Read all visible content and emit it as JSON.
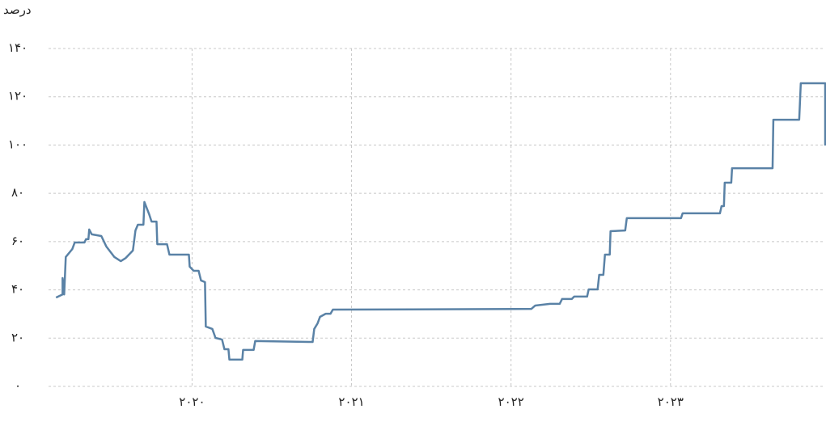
{
  "chart_data": {
    "type": "line",
    "y_label": "درصد",
    "x": [
      2019.147,
      2019.188,
      2019.188,
      2019.198,
      2019.208,
      2019.249,
      2019.264,
      2019.325,
      2019.335,
      2019.35,
      2019.355,
      2019.371,
      2019.431,
      2019.462,
      2019.513,
      2019.553,
      2019.584,
      2019.629,
      2019.645,
      2019.66,
      2019.695,
      2019.701,
      2019.731,
      2019.746,
      2019.777,
      2019.782,
      2019.843,
      2019.858,
      2019.98,
      2019.985,
      2020.01,
      2020.041,
      2020.056,
      2020.081,
      2020.086,
      2020.127,
      2020.147,
      2020.188,
      2020.203,
      2020.228,
      2020.234,
      2020.315,
      2020.32,
      2020.386,
      2020.396,
      2020.756,
      2020.766,
      2020.787,
      2020.802,
      2020.838,
      2020.868,
      2020.883,
      2022.127,
      2022.152,
      2022.244,
      2022.305,
      2022.32,
      2022.381,
      2022.396,
      2022.477,
      2022.487,
      2022.543,
      2022.553,
      2022.579,
      2022.589,
      2022.619,
      2022.624,
      2022.716,
      2022.726,
      2023.066,
      2023.076,
      2023.31,
      2023.32,
      2023.335,
      2023.34,
      2023.381,
      2023.386,
      2023.64,
      2023.645,
      2023.807,
      2023.817,
      2023.97,
      2023.97
    ],
    "series": [
      {
        "color": "#5a82a6",
        "values": [
          36.8,
          38.1,
          44.9,
          38.1,
          53.6,
          56.9,
          59.6,
          59.6,
          61,
          61,
          65,
          63,
          62.3,
          58,
          53.6,
          51.9,
          53.2,
          56.3,
          64.6,
          67,
          67,
          76.4,
          71.3,
          68.3,
          68.3,
          58.9,
          58.9,
          54.6,
          54.6,
          49.6,
          47.9,
          47.9,
          43.9,
          43.2,
          24.8,
          23.8,
          20.1,
          19.4,
          15.4,
          15.4,
          11.1,
          11.1,
          15.1,
          15.1,
          18.8,
          18.4,
          23.8,
          26.1,
          28.8,
          30.1,
          30.1,
          31.8,
          32.1,
          33.5,
          34.2,
          34.2,
          36.2,
          36.2,
          37.2,
          37.2,
          40.2,
          40.2,
          46.2,
          46.2,
          54.6,
          54.6,
          64.3,
          64.6,
          69.7,
          69.7,
          71.7,
          71.7,
          74.7,
          74.7,
          84.4,
          84.4,
          90.4,
          90.4,
          110.5,
          110.5,
          125.6,
          125.6,
          99.8
        ]
      }
    ],
    "xlim": [
      2019.1,
      2023.97
    ],
    "xticks": [
      {
        "value": 2020,
        "label": "۲۰۲۰"
      },
      {
        "value": 2021,
        "label": "۲۰۲۱"
      },
      {
        "value": 2022,
        "label": "۲۰۲۲"
      },
      {
        "value": 2023,
        "label": "۲۰۲۳"
      }
    ],
    "ylim": [
      0,
      140
    ],
    "yticks": [
      {
        "value": 0,
        "label": "۰"
      },
      {
        "value": 20,
        "label": "۲۰"
      },
      {
        "value": 40,
        "label": "۴۰"
      },
      {
        "value": 60,
        "label": "۶۰"
      },
      {
        "value": 80,
        "label": "۸۰"
      },
      {
        "value": 100,
        "label": "۱۰۰"
      },
      {
        "value": 120,
        "label": "۱۲۰"
      },
      {
        "value": 140,
        "label": "۱۴۰"
      }
    ],
    "grid": true
  }
}
